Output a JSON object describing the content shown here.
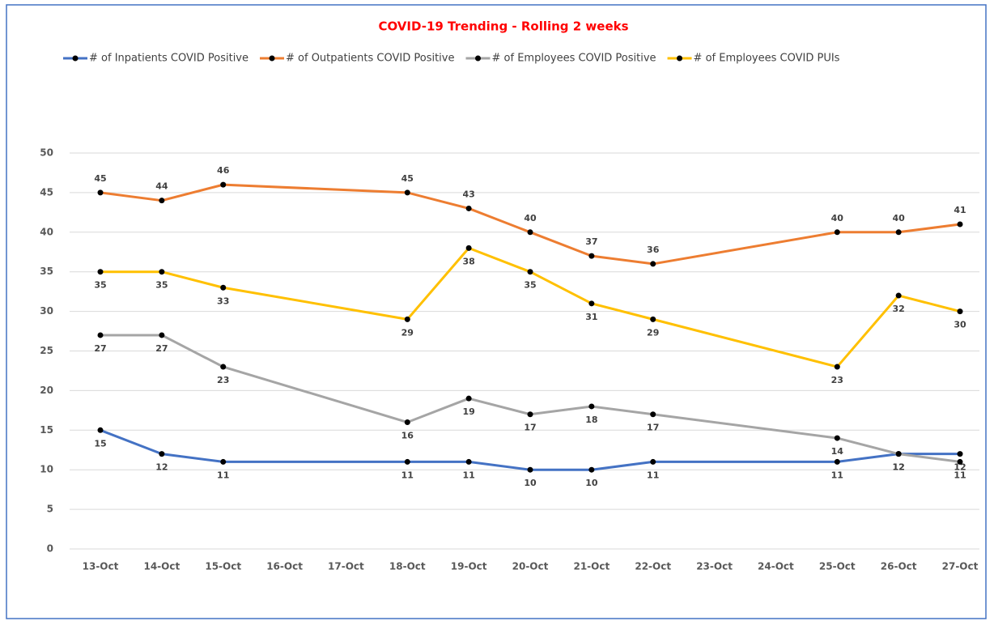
{
  "chart_data": {
    "type": "line",
    "title": "COVID-19 Trending - Rolling 2 weeks",
    "categories": [
      "13-Oct",
      "14-Oct",
      "15-Oct",
      "16-Oct",
      "17-Oct",
      "18-Oct",
      "19-Oct",
      "20-Oct",
      "21-Oct",
      "22-Oct",
      "23-Oct",
      "24-Oct",
      "25-Oct",
      "26-Oct",
      "27-Oct"
    ],
    "series": [
      {
        "name": "# of Inpatients COVID Positive",
        "color": "#4472c4",
        "label_position": "below",
        "values": [
          15,
          12,
          11,
          null,
          null,
          11,
          11,
          10,
          10,
          11,
          null,
          null,
          11,
          12,
          12
        ]
      },
      {
        "name": "# of Outpatients COVID Positive",
        "color": "#ed7d31",
        "label_position": "above",
        "values": [
          45,
          44,
          46,
          null,
          null,
          45,
          43,
          40,
          37,
          36,
          null,
          null,
          40,
          40,
          41
        ]
      },
      {
        "name": "# of Employees COVID Positive",
        "color": "#a5a5a5",
        "label_position": "below",
        "values": [
          27,
          27,
          23,
          null,
          null,
          16,
          19,
          17,
          18,
          17,
          null,
          null,
          14,
          12,
          11
        ]
      },
      {
        "name": "# of Employees COVID PUIs",
        "color": "#ffc000",
        "label_position": "below",
        "values": [
          35,
          35,
          33,
          null,
          null,
          29,
          38,
          35,
          31,
          29,
          null,
          null,
          23,
          32,
          30
        ]
      }
    ],
    "ylim": [
      0,
      50
    ],
    "yticks": [
      0,
      5,
      10,
      15,
      20,
      25,
      30,
      35,
      40,
      45,
      50
    ],
    "grid": true,
    "span_gaps": true,
    "legend": "top"
  }
}
